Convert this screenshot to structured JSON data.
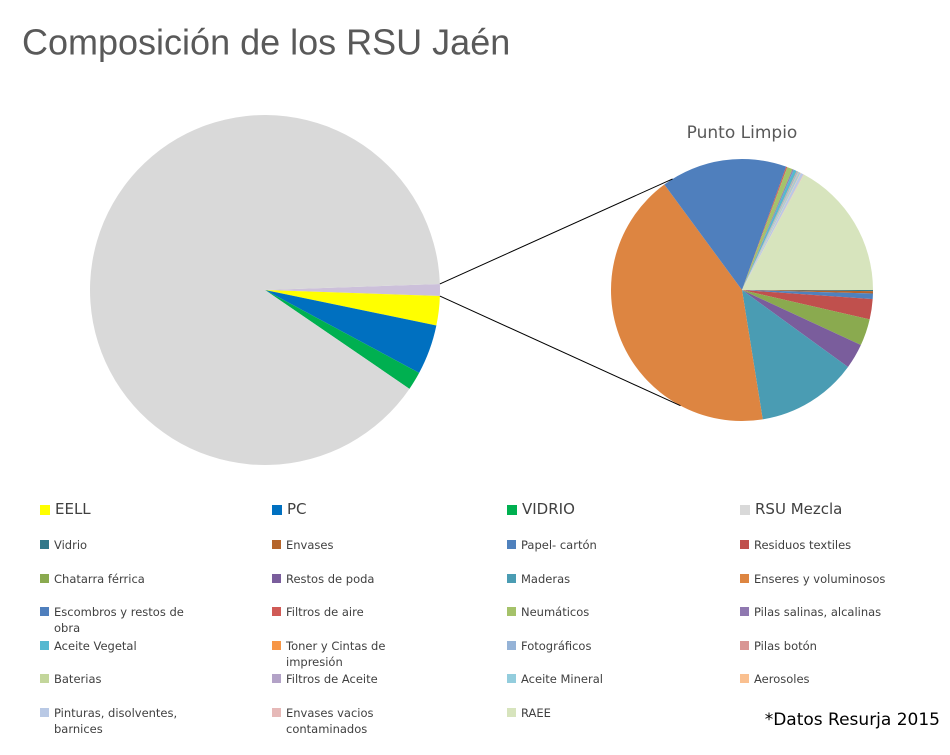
{
  "chart_data": {
    "type": "pie-of-pie",
    "title": "Composición de los RSU Jaén",
    "footnote": "*Datos Resurja 2015",
    "main": {
      "categories": [
        "EELL",
        "PC",
        "VIDRIO",
        "RSU Mezcla"
      ],
      "colors": [
        "#ffff00",
        "#0070c0",
        "#00b050",
        "#d9d9d9"
      ],
      "values": [
        2.7,
        4.6,
        1.7,
        89.9
      ]
    },
    "other": {
      "title": "Punto Limpio",
      "value": 1.1,
      "color": "#ccc0da",
      "categories": [
        "Vidrio",
        "Envases",
        "Papel- cartón",
        "Residuos textiles",
        "Chatarra férrica",
        "Restos de poda",
        "Maderas",
        "Enseres y voluminosos",
        "Escombros y restos de obra",
        "Filtros de aire",
        "Neumáticos",
        "Pilas salinas, alcalinas",
        "Aceite Vegetal",
        "Toner y Cintas de impresión",
        "Fotográficos",
        "Pilas botón",
        "Baterias",
        "Filtros de Aceite",
        "Aceite Mineral",
        "Aerosoles",
        "Pinturas, disolventes, barnices",
        "Envases vacios contaminados",
        "RAEE"
      ],
      "colors": [
        "#31788a",
        "#b5652b",
        "#4f81bd",
        "#c0504d",
        "#8aaa4f",
        "#7a5d9c",
        "#4a9cb3",
        "#dd8541",
        "#4f7fbd",
        "#d05a56",
        "#a5c26a",
        "#8f78b0",
        "#56b8d0",
        "#f79646",
        "#95b3d7",
        "#d99694",
        "#c3d69b",
        "#b3a2c7",
        "#93cddd",
        "#fac090",
        "#b9c9e5",
        "#e6b9b8",
        "#d7e4bd"
      ],
      "values": [
        0.14,
        0.28,
        0.69,
        2.5,
        3.3,
        3.1,
        12.5,
        42.5,
        15.6,
        0.14,
        0.7,
        0.14,
        0.4,
        0.06,
        0.14,
        0.03,
        0.08,
        0.06,
        0.14,
        0.06,
        0.33,
        0.08,
        17.2
      ]
    }
  }
}
